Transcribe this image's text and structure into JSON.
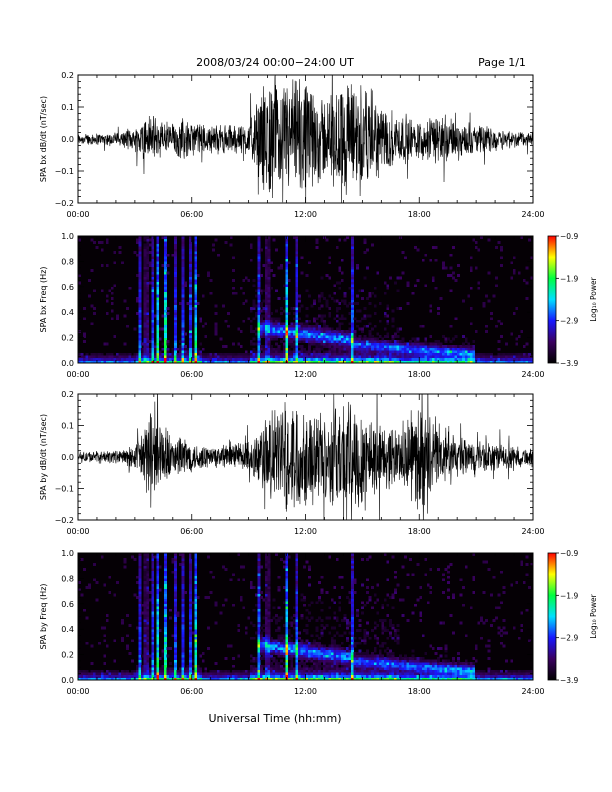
{
  "header": {
    "date_range": "2008/03/24  00:00−24:00 UT",
    "page": "Page 1/1"
  },
  "footer": {
    "xlabel": "Universal Time (hh:mm)"
  },
  "time_ticks": [
    "00:00",
    "06:00",
    "12:00",
    "18:00",
    "24:00"
  ],
  "colors": {
    "trace": "#000000",
    "spectrogram_background": "#050005",
    "colormap": [
      "#000000",
      "#3a0060",
      "#1818ff",
      "#00e0ff",
      "#00ff40",
      "#ffff00",
      "#ff0000"
    ]
  },
  "chart_data": [
    {
      "type": "line",
      "ylabel": "SPA bx dB/dt (nT/sec)",
      "x_range_hours": [
        0,
        24
      ],
      "ylim": [
        -0.2,
        0.2
      ],
      "yticks": [
        "−0.2",
        "−0.1",
        "0.0",
        "0.1",
        "0.2"
      ],
      "activity_profile": {
        "hours": [
          0,
          2,
          3,
          3.5,
          4,
          4.5,
          5,
          5.5,
          6,
          7,
          8,
          9,
          10,
          11,
          12,
          13,
          14,
          15,
          16,
          17,
          18,
          19,
          20,
          21,
          22,
          23,
          24
        ],
        "amplitude": [
          0.02,
          0.022,
          0.04,
          0.09,
          0.08,
          0.07,
          0.06,
          0.07,
          0.06,
          0.05,
          0.05,
          0.06,
          0.21,
          0.21,
          0.2,
          0.15,
          0.2,
          0.21,
          0.12,
          0.09,
          0.07,
          0.09,
          0.06,
          0.05,
          0.04,
          0.03,
          0.025
        ]
      }
    },
    {
      "type": "heatmap",
      "ylabel": "SPA bx Freq (Hz)",
      "x_range_hours": [
        0,
        24
      ],
      "ylim": [
        0.0,
        1.0
      ],
      "yticks": [
        "0.0",
        "0.2",
        "0.4",
        "0.6",
        "0.8",
        "1.0"
      ],
      "colorbar": {
        "label": "Log₁₀ Power",
        "range": [
          -3.9,
          -0.9
        ],
        "ticks": [
          "−0.9",
          "−1.9",
          "−2.9",
          "−3.9"
        ]
      },
      "vertical_bursts_hours": [
        3.3,
        3.6,
        3.9,
        4.2,
        4.6,
        5.1,
        5.5,
        5.9,
        6.2,
        9.5,
        10.0,
        11.0,
        11.5,
        14.5
      ]
    },
    {
      "type": "line",
      "ylabel": "SPA by dB/dt (nT/sec)",
      "x_range_hours": [
        0,
        24
      ],
      "ylim": [
        -0.2,
        0.2
      ],
      "yticks": [
        "−0.2",
        "−0.1",
        "0.0",
        "0.1",
        "0.2"
      ],
      "activity_profile": {
        "hours": [
          0,
          2,
          3,
          3.5,
          4,
          4.5,
          5,
          5.5,
          6,
          7,
          8,
          9,
          10,
          11,
          12,
          13,
          14,
          15,
          16,
          17,
          18,
          19,
          20,
          21,
          22,
          23,
          24
        ],
        "amplitude": [
          0.02,
          0.022,
          0.04,
          0.12,
          0.2,
          0.1,
          0.06,
          0.09,
          0.05,
          0.04,
          0.04,
          0.06,
          0.15,
          0.2,
          0.17,
          0.15,
          0.2,
          0.2,
          0.12,
          0.1,
          0.2,
          0.1,
          0.07,
          0.06,
          0.05,
          0.04,
          0.03
        ]
      }
    },
    {
      "type": "heatmap",
      "ylabel": "SPA by Freq (Hz)",
      "x_range_hours": [
        0,
        24
      ],
      "ylim": [
        0.0,
        1.0
      ],
      "yticks": [
        "0.0",
        "0.2",
        "0.4",
        "0.6",
        "0.8",
        "1.0"
      ],
      "colorbar": {
        "label": "Log₁₀ Power",
        "range": [
          -3.9,
          -0.9
        ],
        "ticks": [
          "−0.9",
          "−1.9",
          "−2.9",
          "−3.9"
        ]
      },
      "vertical_bursts_hours": [
        3.3,
        3.6,
        3.9,
        4.2,
        4.6,
        5.1,
        5.5,
        5.9,
        6.2,
        9.5,
        10.0,
        11.0,
        11.5,
        14.5
      ]
    }
  ]
}
